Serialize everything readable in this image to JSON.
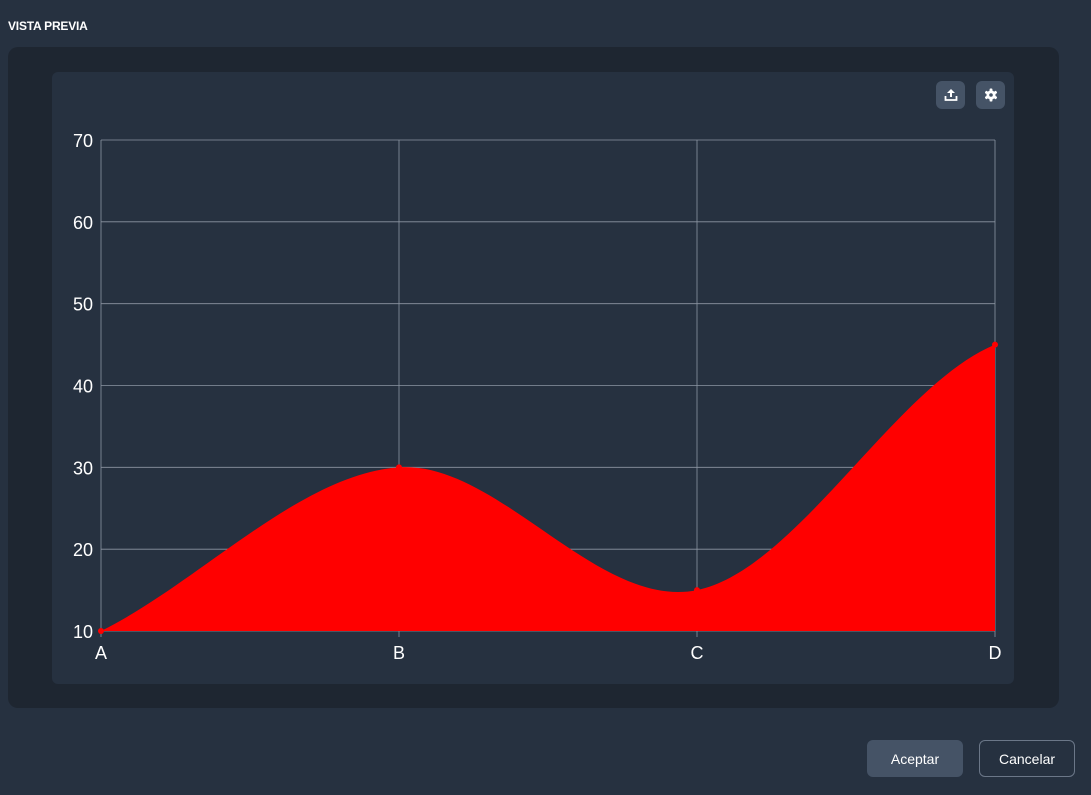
{
  "header": {
    "title": "VISTA PREVIA"
  },
  "toolbar": {
    "export_icon": "upload-icon",
    "settings_icon": "gear-icon"
  },
  "chart_data": {
    "type": "area",
    "categories": [
      "A",
      "B",
      "C",
      "D"
    ],
    "values": [
      10,
      30,
      15,
      45
    ],
    "ylim": [
      10,
      70
    ],
    "yticks": [
      10,
      20,
      30,
      40,
      50,
      60,
      70
    ],
    "grid": true,
    "smooth": true,
    "color": "#ff0000"
  },
  "footer": {
    "accept_label": "Aceptar",
    "cancel_label": "Cancelar"
  }
}
